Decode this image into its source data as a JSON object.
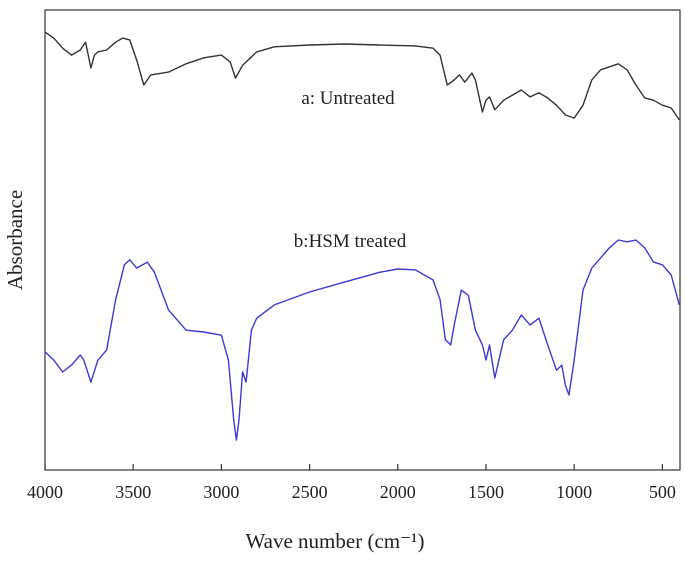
{
  "chart_data": {
    "type": "line",
    "x_label": "Wave number (cm⁻¹)",
    "y_label": "Absorbance",
    "xlim": [
      4000,
      400
    ],
    "ylim": [
      0,
      100
    ],
    "xticks": [
      4000,
      3500,
      3000,
      2500,
      2000,
      1500,
      1000,
      500
    ],
    "annotations": [
      "a: Untreated",
      "b:HSM treated"
    ],
    "series": [
      {
        "name": "a: Untreated",
        "color": "#333333",
        "x": [
          4000,
          3950,
          3900,
          3850,
          3800,
          3770,
          3740,
          3720,
          3700,
          3650,
          3600,
          3560,
          3520,
          3480,
          3440,
          3400,
          3300,
          3200,
          3100,
          3000,
          2950,
          2920,
          2880,
          2800,
          2700,
          2500,
          2300,
          2100,
          1900,
          1800,
          1760,
          1720,
          1680,
          1650,
          1620,
          1580,
          1560,
          1520,
          1500,
          1480,
          1450,
          1400,
          1300,
          1250,
          1200,
          1150,
          1100,
          1050,
          1000,
          950,
          900,
          850,
          750,
          700,
          650,
          600,
          550,
          500,
          450,
          404
        ],
        "values": [
          95.2,
          93.9,
          91.7,
          90.2,
          91.3,
          93.0,
          87.4,
          90.2,
          90.9,
          91.3,
          93.0,
          93.9,
          93.5,
          89.1,
          83.7,
          85.9,
          86.5,
          88.3,
          89.6,
          90.2,
          88.7,
          85.2,
          88.0,
          90.9,
          92.0,
          92.4,
          92.6,
          92.4,
          92.2,
          91.7,
          90.2,
          83.7,
          84.8,
          85.9,
          84.3,
          86.3,
          84.8,
          77.8,
          80.4,
          81.1,
          78.3,
          80.4,
          82.6,
          81.1,
          82.0,
          80.9,
          79.3,
          77.2,
          76.5,
          79.3,
          84.8,
          87.0,
          88.3,
          87.0,
          83.7,
          80.9,
          80.4,
          79.3,
          78.7,
          76.1
        ]
      },
      {
        "name": "b:HSM treated",
        "color": "#3a3ad0",
        "x": [
          4000,
          3950,
          3900,
          3850,
          3800,
          3780,
          3740,
          3700,
          3650,
          3600,
          3550,
          3520,
          3480,
          3420,
          3380,
          3300,
          3200,
          3100,
          3000,
          2960,
          2930,
          2915,
          2900,
          2880,
          2860,
          2830,
          2800,
          2700,
          2500,
          2300,
          2100,
          2000,
          1900,
          1800,
          1760,
          1730,
          1700,
          1680,
          1640,
          1600,
          1560,
          1520,
          1500,
          1480,
          1450,
          1400,
          1350,
          1300,
          1250,
          1200,
          1150,
          1100,
          1070,
          1050,
          1030,
          1000,
          950,
          900,
          850,
          800,
          750,
          700,
          650,
          600,
          550,
          500,
          450,
          404
        ],
        "values": [
          25.7,
          23.9,
          21.3,
          22.8,
          25.0,
          23.9,
          19.1,
          23.9,
          26.1,
          37.0,
          44.6,
          45.7,
          43.9,
          45.2,
          43.0,
          34.8,
          30.4,
          30.0,
          29.3,
          23.9,
          10.9,
          6.5,
          10.9,
          21.3,
          19.1,
          30.4,
          33.0,
          35.9,
          38.7,
          40.9,
          43.0,
          43.7,
          43.5,
          41.3,
          37.0,
          28.3,
          27.2,
          31.5,
          39.1,
          38.0,
          30.4,
          27.2,
          23.9,
          27.2,
          20.0,
          28.3,
          30.4,
          33.7,
          31.5,
          33.0,
          27.2,
          21.7,
          22.8,
          18.5,
          16.3,
          23.9,
          39.1,
          43.9,
          46.1,
          48.3,
          50.0,
          49.6,
          50.0,
          48.3,
          45.2,
          44.6,
          42.4,
          35.9
        ]
      }
    ]
  }
}
